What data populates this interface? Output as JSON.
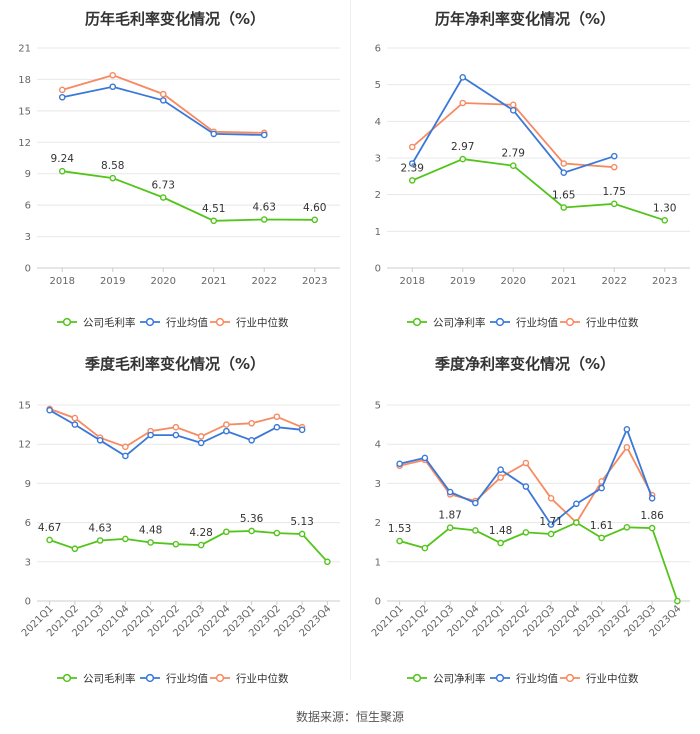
{
  "colors": {
    "company": "#52c41a",
    "avg": "#3a78d8",
    "median": "#f78a62",
    "grid": "#e8e8e8",
    "axis": "#cccccc"
  },
  "legend": {
    "gross": "公司毛利率",
    "net": "公司净利率",
    "avg": "行业均值",
    "median": "行业中位数"
  },
  "source": "数据来源：恒生聚源",
  "chart_data": [
    {
      "type": "line",
      "title": "历年毛利率变化情况（%）",
      "categories": [
        "2018",
        "2019",
        "2020",
        "2021",
        "2022",
        "2023"
      ],
      "yticks": [
        0,
        3,
        6,
        9,
        12,
        15,
        18,
        21
      ],
      "ylim": [
        0,
        21
      ],
      "series": [
        {
          "name": "公司毛利率",
          "role": "company",
          "values": [
            9.24,
            8.58,
            6.73,
            4.51,
            4.63,
            4.6
          ],
          "labels": [
            "9.24",
            "8.58",
            "6.73",
            "4.51",
            "4.63",
            "4.60"
          ]
        },
        {
          "name": "行业均值",
          "role": "avg",
          "values": [
            16.3,
            17.3,
            16.0,
            12.8,
            12.7,
            null
          ]
        },
        {
          "name": "行业中位数",
          "role": "median",
          "values": [
            17.0,
            18.4,
            16.6,
            13.0,
            12.9,
            null
          ]
        }
      ]
    },
    {
      "type": "line",
      "title": "历年净利率变化情况（%）",
      "categories": [
        "2018",
        "2019",
        "2020",
        "2021",
        "2022",
        "2023"
      ],
      "yticks": [
        0,
        1,
        2,
        3,
        4,
        5,
        6
      ],
      "ylim": [
        0,
        6
      ],
      "series": [
        {
          "name": "公司净利率",
          "role": "company",
          "values": [
            2.39,
            2.97,
            2.79,
            1.65,
            1.75,
            1.3
          ],
          "labels": [
            "2.39",
            "2.97",
            "2.79",
            "1.65",
            "1.75",
            "1.30"
          ]
        },
        {
          "name": "行业均值",
          "role": "avg",
          "values": [
            2.85,
            5.2,
            4.3,
            2.6,
            3.05,
            null
          ]
        },
        {
          "name": "行业中位数",
          "role": "median",
          "values": [
            3.3,
            4.5,
            4.45,
            2.85,
            2.75,
            null
          ]
        }
      ]
    },
    {
      "type": "line",
      "title": "季度毛利率变化情况（%）",
      "categories": [
        "2021Q1",
        "2021Q2",
        "2021Q3",
        "2021Q4",
        "2022Q1",
        "2022Q2",
        "2022Q3",
        "2022Q4",
        "2023Q1",
        "2023Q2",
        "2023Q3",
        "2023Q4"
      ],
      "yticks": [
        0,
        3,
        6,
        9,
        12,
        15
      ],
      "ylim": [
        0,
        15
      ],
      "series": [
        {
          "name": "公司毛利率",
          "role": "company",
          "values": [
            4.67,
            4.0,
            4.63,
            4.75,
            4.48,
            4.35,
            4.28,
            5.3,
            5.36,
            5.2,
            5.13,
            3.0
          ],
          "labels": [
            "4.67",
            "",
            "4.63",
            "",
            "4.48",
            "",
            "4.28",
            "",
            "5.36",
            "",
            "5.13",
            ""
          ]
        },
        {
          "name": "行业均值",
          "role": "avg",
          "values": [
            14.6,
            13.5,
            12.3,
            11.1,
            12.7,
            12.7,
            12.1,
            13.0,
            12.3,
            13.3,
            13.1,
            null
          ]
        },
        {
          "name": "行业中位数",
          "role": "median",
          "values": [
            14.7,
            14.0,
            12.5,
            11.8,
            13.0,
            13.3,
            12.6,
            13.5,
            13.6,
            14.1,
            13.3,
            null
          ]
        }
      ]
    },
    {
      "type": "line",
      "title": "季度净利率变化情况（%）",
      "categories": [
        "2021Q1",
        "2021Q2",
        "2021Q3",
        "2021Q4",
        "2022Q1",
        "2022Q2",
        "2022Q3",
        "2022Q4",
        "2023Q1",
        "2023Q2",
        "2023Q3",
        "2023Q4"
      ],
      "yticks": [
        0,
        1,
        2,
        3,
        4,
        5
      ],
      "ylim": [
        0,
        5
      ],
      "series": [
        {
          "name": "公司净利率",
          "role": "company",
          "values": [
            1.53,
            1.35,
            1.87,
            1.8,
            1.48,
            1.75,
            1.71,
            2.0,
            1.61,
            1.88,
            1.86,
            0.0
          ],
          "labels": [
            "1.53",
            "",
            "1.87",
            "",
            "1.48",
            "",
            "1.71",
            "",
            "1.61",
            "",
            "1.86",
            ""
          ]
        },
        {
          "name": "行业均值",
          "role": "avg",
          "values": [
            3.5,
            3.65,
            2.78,
            2.5,
            3.35,
            2.92,
            1.95,
            2.48,
            2.88,
            4.38,
            2.62,
            null
          ]
        },
        {
          "name": "行业中位数",
          "role": "median",
          "values": [
            3.45,
            3.6,
            2.72,
            2.55,
            3.15,
            3.52,
            2.62,
            2.0,
            3.05,
            3.92,
            2.7,
            null
          ]
        }
      ]
    }
  ]
}
